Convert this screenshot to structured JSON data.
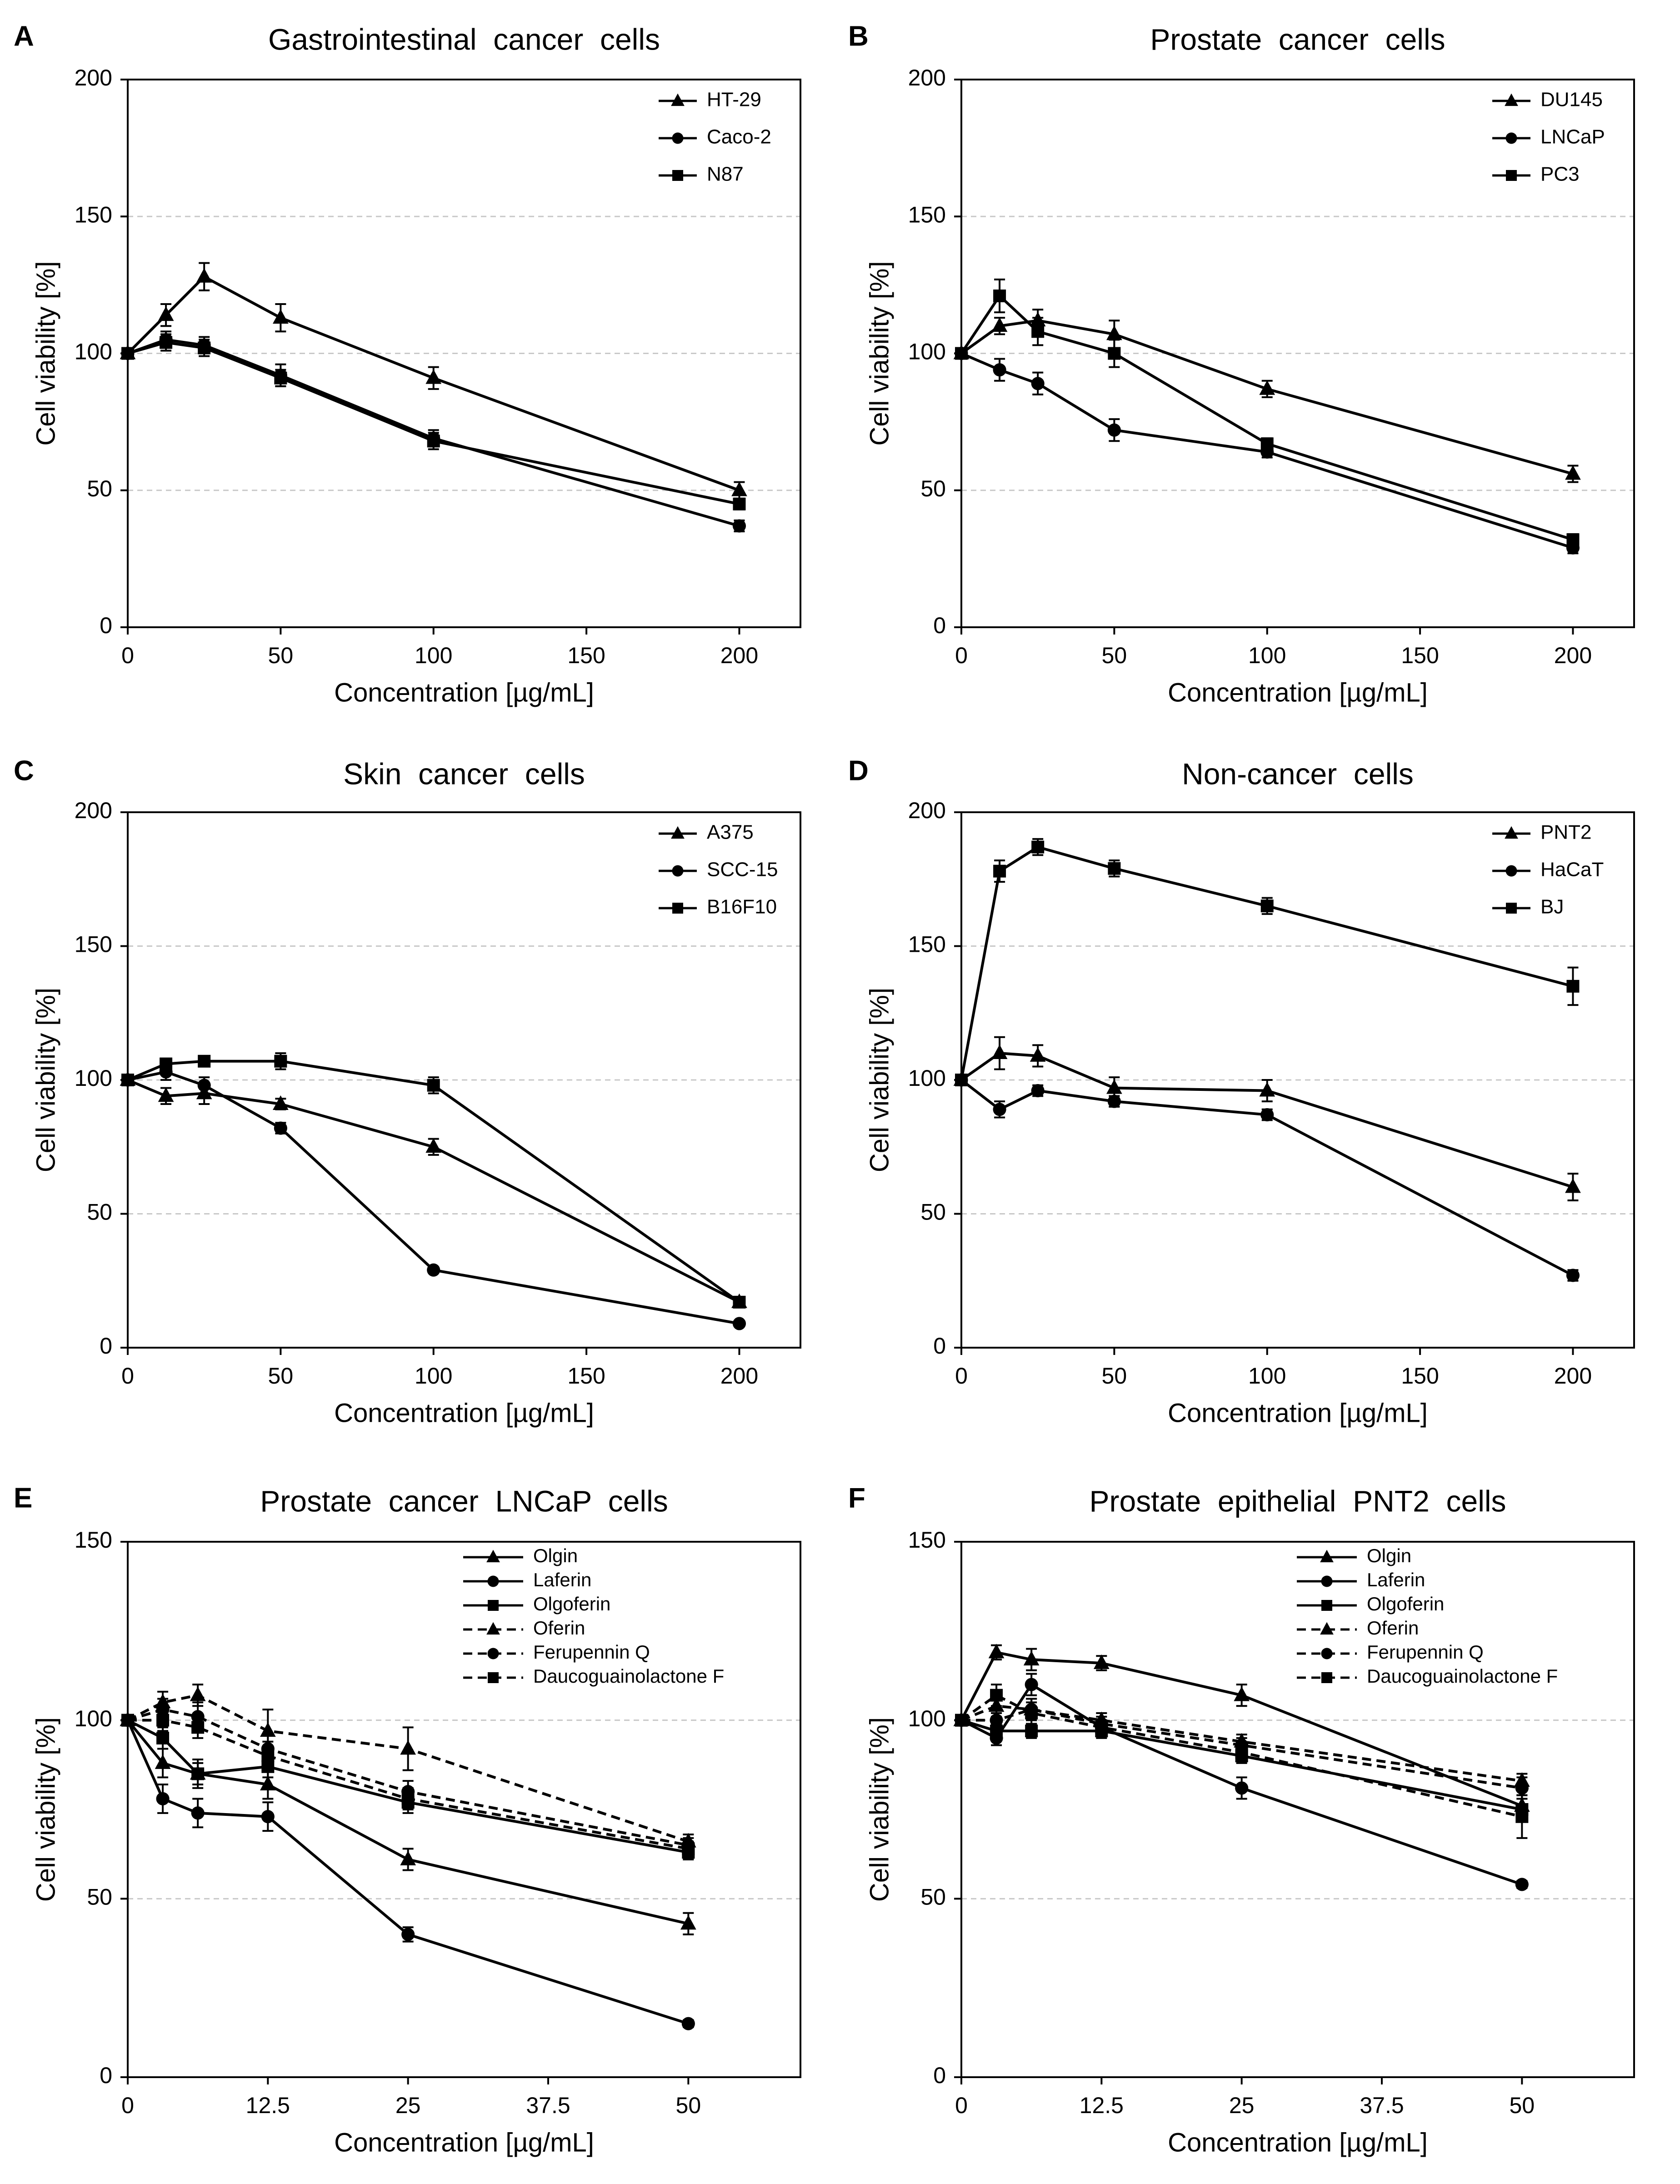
{
  "figure": {
    "background": "#ffffff",
    "grid_color": "#c8c8c8",
    "line_color": "#000000"
  },
  "chart_data": [
    {
      "panel": "A",
      "type": "line",
      "title": "Gastrointestinal  cancer  cells",
      "xlabel": "Concentration [µg/mL]",
      "ylabel": "Cell viability [%]",
      "xlim": [
        0,
        220
      ],
      "ylim": [
        0,
        200
      ],
      "xticks": [
        0,
        50,
        100,
        150,
        200
      ],
      "xtick_labels": [
        "0",
        "50",
        "100",
        "150",
        "200"
      ],
      "yticks": [
        0,
        50,
        100,
        150,
        200
      ],
      "yticks_grid": [
        50,
        100,
        150
      ],
      "grid": true,
      "legend_position": "top-right",
      "x": [
        0,
        12.5,
        25,
        50,
        100,
        200
      ],
      "series": [
        {
          "name": "HT-29",
          "marker": "triangle",
          "dash": "solid",
          "values": [
            100,
            114,
            128,
            113,
            91,
            50
          ],
          "errors": [
            0,
            4,
            5,
            5,
            4,
            3
          ]
        },
        {
          "name": "Caco-2",
          "marker": "circle",
          "dash": "solid",
          "values": [
            100,
            105,
            103,
            92,
            69,
            37
          ],
          "errors": [
            0,
            3,
            3,
            4,
            3,
            2
          ]
        },
        {
          "name": "N87",
          "marker": "square",
          "dash": "solid",
          "values": [
            100,
            104,
            102,
            91,
            68,
            45
          ],
          "errors": [
            0,
            3,
            3,
            3,
            3,
            2
          ]
        }
      ]
    },
    {
      "panel": "B",
      "type": "line",
      "title": "Prostate  cancer  cells",
      "xlabel": "Concentration [µg/mL]",
      "ylabel": "Cell viability [%]",
      "xlim": [
        0,
        220
      ],
      "ylim": [
        0,
        200
      ],
      "xticks": [
        0,
        50,
        100,
        150,
        200
      ],
      "xtick_labels": [
        "0",
        "50",
        "100",
        "150",
        "200"
      ],
      "yticks": [
        0,
        50,
        100,
        150,
        200
      ],
      "yticks_grid": [
        50,
        100,
        150
      ],
      "grid": true,
      "legend_position": "top-right",
      "x": [
        0,
        12.5,
        25,
        50,
        100,
        200
      ],
      "series": [
        {
          "name": "DU145",
          "marker": "triangle",
          "dash": "solid",
          "values": [
            100,
            110,
            112,
            107,
            87,
            56
          ],
          "errors": [
            0,
            3,
            4,
            5,
            3,
            3
          ]
        },
        {
          "name": "LNCaP",
          "marker": "circle",
          "dash": "solid",
          "values": [
            100,
            94,
            89,
            72,
            64,
            29
          ],
          "errors": [
            0,
            4,
            4,
            4,
            2,
            2
          ]
        },
        {
          "name": "PC3",
          "marker": "square",
          "dash": "solid",
          "values": [
            100,
            121,
            108,
            100,
            67,
            32
          ],
          "errors": [
            0,
            6,
            5,
            5,
            2,
            2
          ]
        }
      ]
    },
    {
      "panel": "C",
      "type": "line",
      "title": "Skin  cancer  cells",
      "xlabel": "Concentration [µg/mL]",
      "ylabel": "Cell viability [%]",
      "xlim": [
        0,
        220
      ],
      "ylim": [
        0,
        200
      ],
      "xticks": [
        0,
        50,
        100,
        150,
        200
      ],
      "xtick_labels": [
        "0",
        "50",
        "100",
        "150",
        "200"
      ],
      "yticks": [
        0,
        50,
        100,
        150,
        200
      ],
      "yticks_grid": [
        50,
        100,
        150
      ],
      "grid": true,
      "legend_position": "top-right",
      "x": [
        0,
        12.5,
        25,
        50,
        100,
        200
      ],
      "series": [
        {
          "name": "A375",
          "marker": "triangle",
          "dash": "solid",
          "values": [
            100,
            94,
            95,
            91,
            75,
            17
          ],
          "errors": [
            0,
            3,
            4,
            2,
            3,
            1
          ]
        },
        {
          "name": "SCC-15",
          "marker": "circle",
          "dash": "solid",
          "values": [
            100,
            103,
            98,
            82,
            29,
            9
          ],
          "errors": [
            0,
            3,
            3,
            2,
            1,
            1
          ]
        },
        {
          "name": "B16F10",
          "marker": "square",
          "dash": "solid",
          "values": [
            100,
            106,
            107,
            107,
            98,
            17
          ],
          "errors": [
            0,
            2,
            2,
            3,
            3,
            1
          ]
        }
      ]
    },
    {
      "panel": "D",
      "type": "line",
      "title": "Non-cancer  cells",
      "xlabel": "Concentration [µg/mL]",
      "ylabel": "Cell viability [%]",
      "xlim": [
        0,
        220
      ],
      "ylim": [
        0,
        200
      ],
      "xticks": [
        0,
        50,
        100,
        150,
        200
      ],
      "xtick_labels": [
        "0",
        "50",
        "100",
        "150",
        "200"
      ],
      "yticks": [
        0,
        50,
        100,
        150,
        200
      ],
      "yticks_grid": [
        50,
        100,
        150
      ],
      "grid": true,
      "legend_position": "top-right",
      "x": [
        0,
        12.5,
        25,
        50,
        100,
        200
      ],
      "series": [
        {
          "name": "PNT2",
          "marker": "triangle",
          "dash": "solid",
          "values": [
            100,
            110,
            109,
            97,
            96,
            60
          ],
          "errors": [
            0,
            6,
            4,
            4,
            4,
            5
          ]
        },
        {
          "name": "HaCaT",
          "marker": "circle",
          "dash": "solid",
          "values": [
            100,
            89,
            96,
            92,
            87,
            27
          ],
          "errors": [
            0,
            3,
            2,
            2,
            2,
            2
          ]
        },
        {
          "name": "BJ",
          "marker": "square",
          "dash": "solid",
          "values": [
            100,
            178,
            187,
            179,
            165,
            135
          ],
          "errors": [
            0,
            4,
            3,
            3,
            3,
            7
          ]
        }
      ]
    },
    {
      "panel": "E",
      "type": "line",
      "title": "Prostate  cancer  LNCaP  cells",
      "xlabel": "Concentration [µg/mL]",
      "ylabel": "Cell viability [%]",
      "xlim": [
        0,
        60
      ],
      "ylim": [
        0,
        150
      ],
      "xticks": [
        0,
        12.5,
        25,
        37.5,
        50
      ],
      "xtick_labels": [
        "0",
        "12.5",
        "25",
        "37.5",
        "50"
      ],
      "yticks": [
        0,
        50,
        100,
        150
      ],
      "yticks_grid": [
        50,
        100
      ],
      "grid": true,
      "legend_position": "top-right",
      "x": [
        0,
        3.125,
        6.25,
        12.5,
        25,
        50
      ],
      "series": [
        {
          "name": "Olgin",
          "marker": "triangle",
          "dash": "solid",
          "values": [
            100,
            88,
            85,
            82,
            61,
            43
          ],
          "errors": [
            0,
            4,
            4,
            4,
            3,
            3
          ]
        },
        {
          "name": "Laferin",
          "marker": "circle",
          "dash": "solid",
          "values": [
            100,
            78,
            74,
            73,
            40,
            15
          ],
          "errors": [
            0,
            4,
            4,
            4,
            2,
            1
          ]
        },
        {
          "name": "Olgoferin",
          "marker": "square",
          "dash": "solid",
          "values": [
            100,
            95,
            85,
            87,
            77,
            63
          ],
          "errors": [
            0,
            3,
            3,
            3,
            3,
            2
          ]
        },
        {
          "name": "Oferin",
          "marker": "triangle",
          "dash": "dashed",
          "values": [
            100,
            105,
            107,
            97,
            92,
            66
          ],
          "errors": [
            0,
            3,
            3,
            6,
            6,
            2
          ]
        },
        {
          "name": "Ferupennin Q",
          "marker": "circle",
          "dash": "dashed",
          "values": [
            100,
            103,
            101,
            92,
            80,
            65
          ],
          "errors": [
            0,
            3,
            4,
            4,
            3,
            2
          ]
        },
        {
          "name": "Daucoguainolactone F",
          "marker": "square",
          "dash": "dashed",
          "values": [
            100,
            100,
            98,
            90,
            78,
            64
          ],
          "errors": [
            0,
            3,
            3,
            4,
            3,
            2
          ]
        }
      ]
    },
    {
      "panel": "F",
      "type": "line",
      "title": "Prostate  epithelial  PNT2  cells",
      "xlabel": "Concentration [µg/mL]",
      "ylabel": "Cell viability [%]",
      "xlim": [
        0,
        60
      ],
      "ylim": [
        0,
        150
      ],
      "xticks": [
        0,
        12.5,
        25,
        37.5,
        50
      ],
      "xtick_labels": [
        "0",
        "12.5",
        "25",
        "37.5",
        "50"
      ],
      "yticks": [
        0,
        50,
        100,
        150
      ],
      "yticks_grid": [
        50,
        100
      ],
      "grid": true,
      "legend_position": "top-right",
      "x": [
        0,
        3.125,
        6.25,
        12.5,
        25,
        50
      ],
      "series": [
        {
          "name": "Olgin",
          "marker": "triangle",
          "dash": "solid",
          "values": [
            100,
            119,
            117,
            116,
            107,
            76
          ],
          "errors": [
            0,
            2,
            3,
            2,
            3,
            3
          ]
        },
        {
          "name": "Laferin",
          "marker": "circle",
          "dash": "solid",
          "values": [
            100,
            95,
            110,
            98,
            81,
            54
          ],
          "errors": [
            0,
            2,
            3,
            2,
            3,
            1
          ]
        },
        {
          "name": "Olgoferin",
          "marker": "square",
          "dash": "solid",
          "values": [
            100,
            97,
            97,
            97,
            90,
            75
          ],
          "errors": [
            0,
            2,
            2,
            2,
            2,
            3
          ]
        },
        {
          "name": "Oferin",
          "marker": "triangle",
          "dash": "dashed",
          "values": [
            100,
            104,
            103,
            100,
            94,
            83
          ],
          "errors": [
            0,
            3,
            3,
            2,
            2,
            2
          ]
        },
        {
          "name": "Ferupennin Q",
          "marker": "circle",
          "dash": "dashed",
          "values": [
            100,
            100,
            103,
            99,
            93,
            81
          ],
          "errors": [
            0,
            2,
            3,
            2,
            2,
            3
          ]
        },
        {
          "name": "Daucoguainolactone F",
          "marker": "square",
          "dash": "dashed",
          "values": [
            100,
            107,
            102,
            98,
            91,
            73
          ],
          "errors": [
            0,
            3,
            3,
            2,
            2,
            6
          ]
        }
      ]
    }
  ]
}
